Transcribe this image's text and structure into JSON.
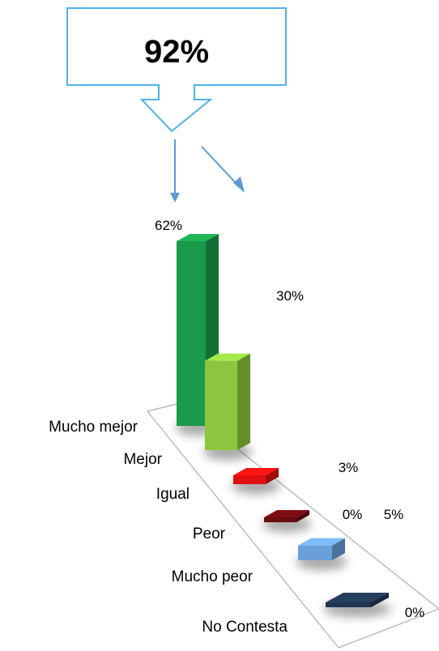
{
  "callout": {
    "text": "92%",
    "border_color": "#4fb3e8"
  },
  "arrow_color": "#5b9bd5",
  "chart_data": {
    "type": "bar",
    "categories": [
      "Mucho mejor",
      "Mejor",
      "Igual",
      "Peor",
      "Mucho peor",
      "No Contesta"
    ],
    "values": [
      62,
      30,
      3,
      0,
      5,
      0
    ],
    "value_labels": [
      "62%",
      "30%",
      "3%",
      "0%",
      "5%",
      "0%"
    ],
    "colors": [
      "#1a9a4a",
      "#8cc63f",
      "#e01010",
      "#6b0a10",
      "#6a9fd8",
      "#1f3550"
    ],
    "title": "",
    "xlabel": "",
    "ylabel": "",
    "ylim": [
      0,
      62
    ],
    "grid": false,
    "legend": "none"
  }
}
